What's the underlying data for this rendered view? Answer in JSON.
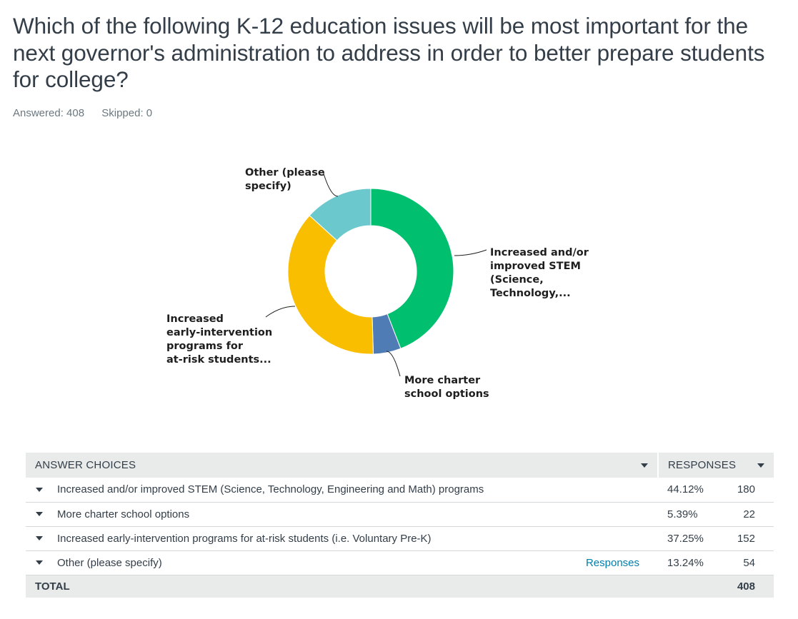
{
  "question": {
    "title": "Which of the following K-12 education issues will be most important for the next governor's administration to address in order to better prepare students for college?",
    "answered": "Answered: 408",
    "skipped": "Skipped: 0"
  },
  "chart_data": {
    "type": "pie",
    "variant": "donut",
    "slices": [
      {
        "label": [
          "Increased and/or",
          "improved STEM",
          "(Science,",
          "Technology,..."
        ],
        "value": 44.12,
        "color": "#00bf6f"
      },
      {
        "label": [
          "More charter",
          "school options"
        ],
        "value": 5.39,
        "color": "#507cb6"
      },
      {
        "label": [
          "Increased",
          "early-intervention",
          "programs for",
          "at-risk students..."
        ],
        "value": 37.25,
        "color": "#f9be00"
      },
      {
        "label": [
          "Other (please",
          "specify)"
        ],
        "value": 13.24,
        "color": "#6bc8cd"
      }
    ]
  },
  "table": {
    "header_choices": "ANSWER CHOICES",
    "header_responses": "RESPONSES",
    "rows": [
      {
        "choice": "Increased and/or improved STEM (Science, Technology, Engineering and Math) programs",
        "percent": "44.12%",
        "count": "180"
      },
      {
        "choice": "More charter school options",
        "percent": "5.39%",
        "count": "22"
      },
      {
        "choice": "Increased early-intervention programs for at-risk students (i.e. Voluntary Pre-K)",
        "percent": "37.25%",
        "count": "152"
      },
      {
        "choice": "Other (please specify)",
        "percent": "13.24%",
        "count": "54",
        "link": "Responses"
      }
    ],
    "total_label": "TOTAL",
    "total_count": "408"
  }
}
